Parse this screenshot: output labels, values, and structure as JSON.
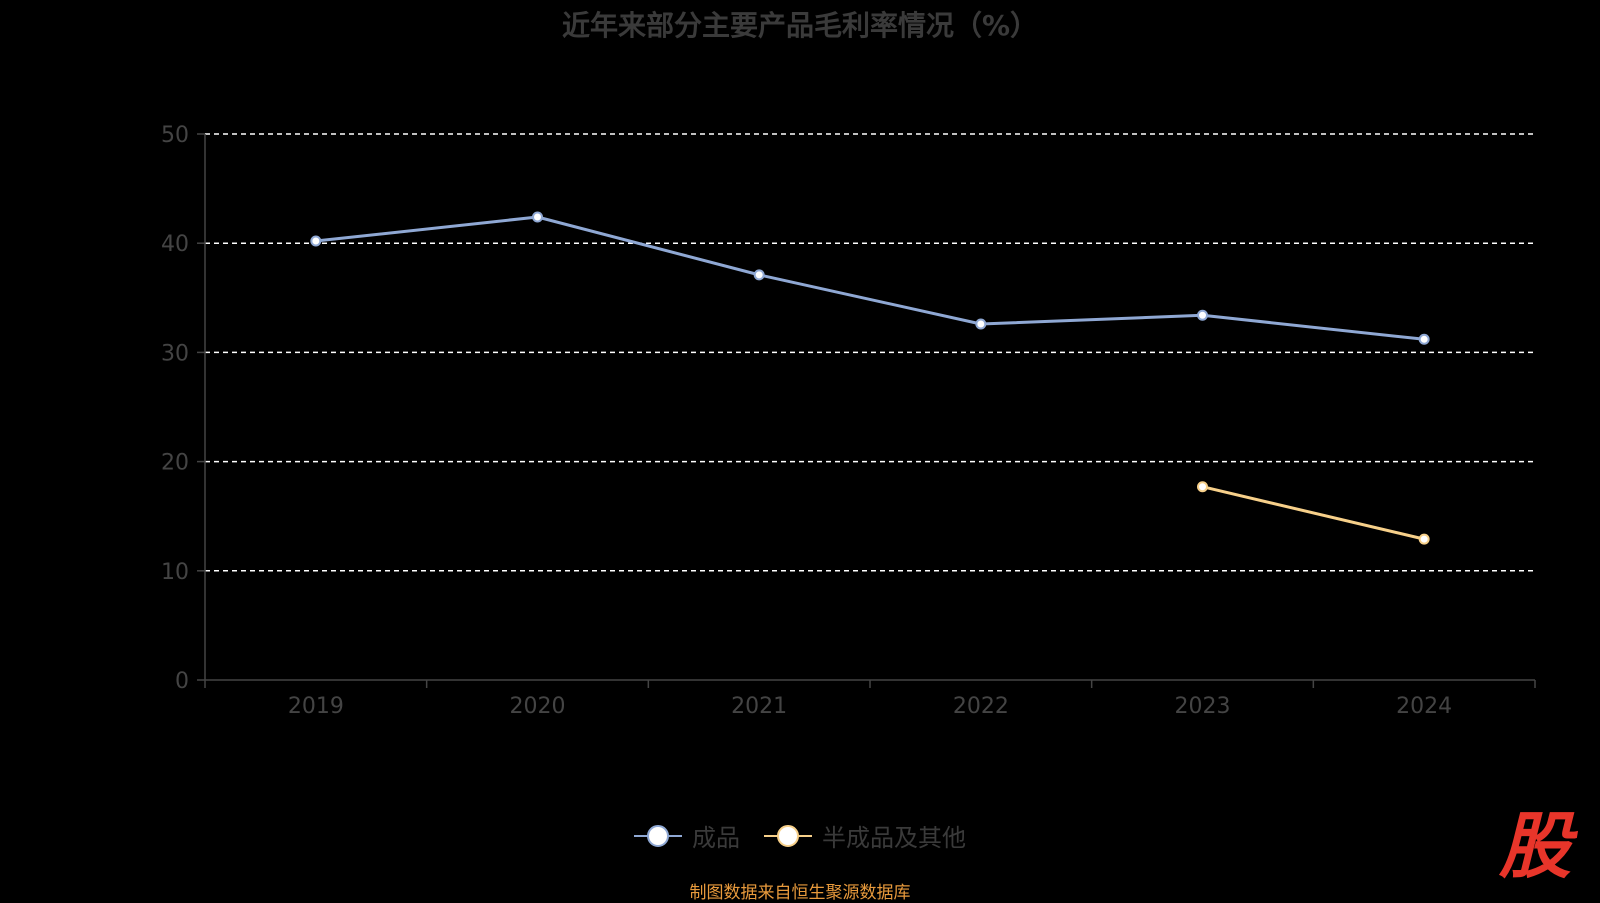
{
  "chart_data": {
    "type": "line",
    "title": "近年来部分主要产品毛利率情况（%）",
    "categories": [
      "2019",
      "2020",
      "2021",
      "2022",
      "2023",
      "2024"
    ],
    "ylim": [
      0,
      50
    ],
    "yticks": [
      0,
      10,
      20,
      30,
      40,
      50
    ],
    "grid": true,
    "legend_position": "bottom",
    "series": [
      {
        "name": "成品",
        "color": "#8fa8d4",
        "values": [
          40.2,
          42.4,
          37.1,
          32.6,
          33.4,
          31.2
        ]
      },
      {
        "name": "半成品及其他",
        "color": "#f7d08a",
        "values": [
          null,
          null,
          null,
          null,
          17.7,
          12.9
        ]
      }
    ]
  },
  "source": "制图数据来自恒生聚源数据库",
  "watermark": "股",
  "colors": {
    "background": "#000000",
    "grid": "#ffffff",
    "axis": "#444444",
    "title": "#3a3a3a",
    "label": "#444444",
    "source": "#e89a3c",
    "watermark": "#e8352a"
  }
}
